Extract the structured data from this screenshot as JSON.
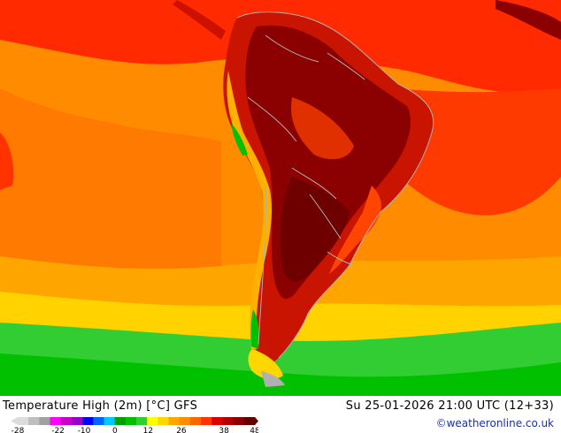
{
  "map": {
    "region": "South America",
    "field": "2 m maximum temperature",
    "colors": {
      "ocean_far": "#ff8c00",
      "ocean_warm": "#ff5a00",
      "tropics": "#ff2200",
      "land_hot": "#cc1100",
      "land_very_hot": "#8b0000",
      "land_extreme": "#6e0000",
      "mild": "#ffb400",
      "cool": "#ffd700",
      "cold_yellow": "#e6e61e",
      "cold_green": "#32cd32",
      "cold_green_dark": "#00c000",
      "andes_cool": "#00b400",
      "borders": "#b0b0b0"
    }
  },
  "footer": {
    "title": "Temperature High (2m) [°C] GFS",
    "datetime": "Su 25-01-2026 21:00 UTC (12+33)",
    "credit": "©weatheronline.co.uk"
  },
  "legend": {
    "ticks": [
      "-28",
      "-22",
      "-10",
      "0",
      "12",
      "26",
      "38",
      "48"
    ],
    "swatches": [
      "#dcdcdc",
      "#bebebe",
      "#a0a0a0",
      "#ff00ff",
      "#c800c8",
      "#9600c8",
      "#0000ff",
      "#0064ff",
      "#00c8ff",
      "#00a000",
      "#00c000",
      "#32cd32",
      "#ffff00",
      "#ffd700",
      "#ffa500",
      "#ff8c00",
      "#ff6400",
      "#ff3200",
      "#dc0000",
      "#b40000",
      "#8b0000",
      "#640000"
    ]
  }
}
